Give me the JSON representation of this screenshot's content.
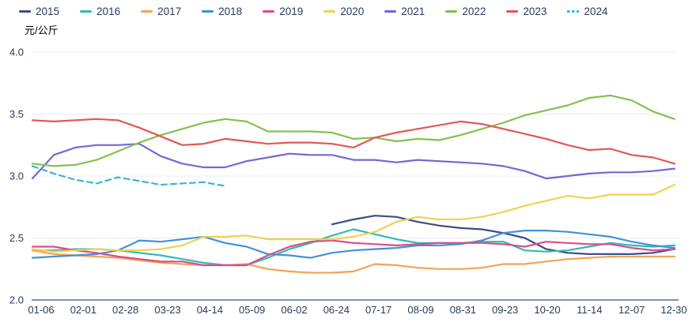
{
  "colors": {
    "background": "#ffffff",
    "text": "#2c3a57",
    "axis_line": "#3e4c7e",
    "grid_line": "#ebedf2"
  },
  "y_axis": {
    "unit": "元/公斤",
    "tick_labels": [
      "2.0",
      "2.5",
      "3.0",
      "3.5",
      "4.0"
    ]
  },
  "chart_data": {
    "type": "line",
    "title": "",
    "ylabel": "元/公斤",
    "xlabel": "",
    "ylim": [
      2.0,
      4.0
    ],
    "y_ticks": [
      2.0,
      2.5,
      3.0,
      3.5,
      4.0
    ],
    "grid": true,
    "legend_position": "top-left",
    "points": 31,
    "x_tick_labels": [
      "01-06",
      "02-01",
      "02-28",
      "03-23",
      "04-14",
      "05-09",
      "06-02",
      "06-24",
      "07-17",
      "08-09",
      "08-31",
      "09-23",
      "10-20",
      "11-14",
      "12-07",
      "12-30"
    ],
    "series": [
      {
        "name": "2015",
        "color": "#3c4e87",
        "style": "solid",
        "values": [
          null,
          null,
          null,
          null,
          null,
          null,
          null,
          null,
          null,
          null,
          null,
          null,
          null,
          null,
          2.61,
          2.65,
          2.68,
          2.67,
          2.63,
          2.6,
          2.58,
          2.57,
          2.54,
          2.5,
          2.41,
          2.38,
          2.37,
          2.37,
          2.37,
          2.38,
          2.41
        ]
      },
      {
        "name": "2016",
        "color": "#2fbcb3",
        "style": "solid",
        "values": [
          2.4,
          2.4,
          2.41,
          2.41,
          2.4,
          2.38,
          2.36,
          2.33,
          2.3,
          2.28,
          2.28,
          2.34,
          2.41,
          2.46,
          2.52,
          2.57,
          2.53,
          2.49,
          2.46,
          2.46,
          2.46,
          2.47,
          2.47,
          2.4,
          2.39,
          2.4,
          2.43,
          2.46,
          2.44,
          2.43,
          2.44
        ]
      },
      {
        "name": "2017",
        "color": "#f5a355",
        "style": "solid",
        "values": [
          2.4,
          2.37,
          2.36,
          2.35,
          2.34,
          2.32,
          2.3,
          2.29,
          2.28,
          2.28,
          2.29,
          2.25,
          2.23,
          2.22,
          2.22,
          2.23,
          2.29,
          2.28,
          2.26,
          2.25,
          2.25,
          2.26,
          2.29,
          2.29,
          2.31,
          2.33,
          2.34,
          2.35,
          2.35,
          2.35,
          2.35
        ]
      },
      {
        "name": "2018",
        "color": "#4292d6",
        "style": "solid",
        "values": [
          2.34,
          2.35,
          2.36,
          2.37,
          2.4,
          2.48,
          2.47,
          2.49,
          2.51,
          2.46,
          2.43,
          2.37,
          2.36,
          2.34,
          2.38,
          2.4,
          2.41,
          2.42,
          2.44,
          2.44,
          2.45,
          2.48,
          2.54,
          2.56,
          2.56,
          2.55,
          2.53,
          2.51,
          2.47,
          2.44,
          2.42
        ]
      },
      {
        "name": "2019",
        "color": "#d94d8d",
        "style": "solid",
        "values": [
          2.43,
          2.43,
          2.4,
          2.38,
          2.35,
          2.33,
          2.31,
          2.31,
          2.28,
          2.28,
          2.28,
          2.36,
          2.43,
          2.47,
          2.48,
          2.46,
          2.45,
          2.44,
          2.45,
          2.46,
          2.46,
          2.46,
          2.45,
          2.43,
          2.47,
          2.46,
          2.45,
          2.45,
          2.42,
          2.4,
          2.41
        ]
      },
      {
        "name": "2020",
        "color": "#f0d152",
        "style": "solid",
        "values": [
          2.41,
          2.39,
          2.4,
          2.41,
          2.4,
          2.4,
          2.41,
          2.44,
          2.51,
          2.51,
          2.52,
          2.49,
          2.49,
          2.49,
          2.49,
          2.51,
          2.55,
          2.63,
          2.67,
          2.65,
          2.65,
          2.67,
          2.71,
          2.76,
          2.8,
          2.84,
          2.82,
          2.85,
          2.85,
          2.85,
          2.93
        ]
      },
      {
        "name": "2021",
        "color": "#7766d2",
        "style": "solid",
        "values": [
          2.98,
          3.17,
          3.23,
          3.25,
          3.25,
          3.26,
          3.16,
          3.1,
          3.07,
          3.07,
          3.12,
          3.15,
          3.18,
          3.17,
          3.17,
          3.13,
          3.13,
          3.11,
          3.13,
          3.12,
          3.11,
          3.1,
          3.08,
          3.04,
          2.98,
          3.0,
          3.02,
          3.03,
          3.03,
          3.04,
          3.06
        ]
      },
      {
        "name": "2022",
        "color": "#84c14f",
        "style": "solid",
        "values": [
          3.1,
          3.08,
          3.09,
          3.13,
          3.2,
          3.27,
          3.33,
          3.38,
          3.43,
          3.46,
          3.44,
          3.36,
          3.36,
          3.36,
          3.35,
          3.3,
          3.31,
          3.28,
          3.3,
          3.29,
          3.33,
          3.38,
          3.43,
          3.49,
          3.53,
          3.57,
          3.63,
          3.65,
          3.61,
          3.52,
          3.46
        ]
      },
      {
        "name": "2023",
        "color": "#e25757",
        "style": "solid",
        "values": [
          3.45,
          3.44,
          3.45,
          3.46,
          3.45,
          3.39,
          3.32,
          3.25,
          3.26,
          3.3,
          3.28,
          3.26,
          3.27,
          3.27,
          3.26,
          3.23,
          3.31,
          3.35,
          3.38,
          3.41,
          3.44,
          3.42,
          3.38,
          3.34,
          3.3,
          3.25,
          3.21,
          3.22,
          3.17,
          3.15,
          3.1
        ]
      },
      {
        "name": "2024",
        "color": "#3fb3d8",
        "style": "dashed",
        "values": [
          3.08,
          3.02,
          2.97,
          2.94,
          2.99,
          2.96,
          2.93,
          2.94,
          2.95,
          2.92,
          null,
          null,
          null,
          null,
          null,
          null,
          null,
          null,
          null,
          null,
          null,
          null,
          null,
          null,
          null,
          null,
          null,
          null,
          null,
          null,
          null
        ]
      }
    ]
  }
}
